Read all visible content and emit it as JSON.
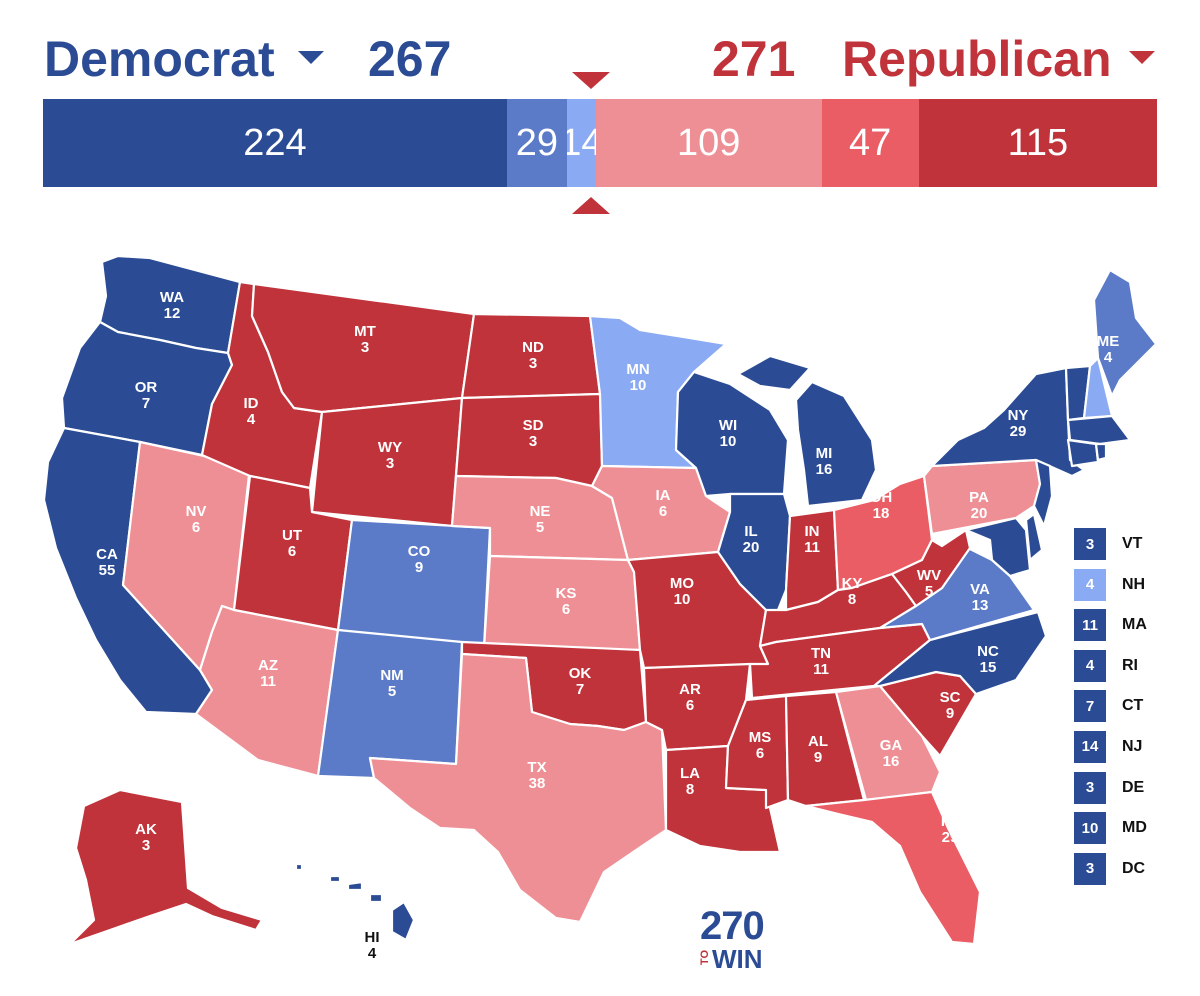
{
  "header": {
    "dem_label": "Democrat",
    "dem_total": "267",
    "rep_total": "271",
    "rep_label": "Republican"
  },
  "colors": {
    "safe_dem": "#2B4C94",
    "likely_dem": "#5B7AC7",
    "lean_dem": "#8AAAF3",
    "lean_rep": "#EE8F95",
    "likely_rep": "#EA5D64",
    "safe_rep": "#C0333A"
  },
  "bar": [
    {
      "value": 224,
      "label": "224",
      "category": "safe_dem"
    },
    {
      "value": 29,
      "label": "29",
      "category": "likely_dem"
    },
    {
      "value": 14,
      "label": "14",
      "category": "lean_dem"
    },
    {
      "value": 109,
      "label": "109",
      "category": "lean_rep"
    },
    {
      "value": 47,
      "label": "47",
      "category": "likely_rep"
    },
    {
      "value": 115,
      "label": "115",
      "category": "safe_rep"
    }
  ],
  "states": [
    {
      "abbr": "WA",
      "ev": "12",
      "category": "safe_dem"
    },
    {
      "abbr": "OR",
      "ev": "7",
      "category": "safe_dem"
    },
    {
      "abbr": "CA",
      "ev": "55",
      "category": "safe_dem"
    },
    {
      "abbr": "NV",
      "ev": "6",
      "category": "lean_rep"
    },
    {
      "abbr": "ID",
      "ev": "4",
      "category": "safe_rep"
    },
    {
      "abbr": "MT",
      "ev": "3",
      "category": "safe_rep"
    },
    {
      "abbr": "WY",
      "ev": "3",
      "category": "safe_rep"
    },
    {
      "abbr": "UT",
      "ev": "6",
      "category": "safe_rep"
    },
    {
      "abbr": "AZ",
      "ev": "11",
      "category": "lean_rep"
    },
    {
      "abbr": "CO",
      "ev": "9",
      "category": "likely_dem"
    },
    {
      "abbr": "NM",
      "ev": "5",
      "category": "likely_dem"
    },
    {
      "abbr": "ND",
      "ev": "3",
      "category": "safe_rep"
    },
    {
      "abbr": "SD",
      "ev": "3",
      "category": "safe_rep"
    },
    {
      "abbr": "NE",
      "ev": "5",
      "category": "lean_rep"
    },
    {
      "abbr": "KS",
      "ev": "6",
      "category": "lean_rep"
    },
    {
      "abbr": "OK",
      "ev": "7",
      "category": "safe_rep"
    },
    {
      "abbr": "TX",
      "ev": "38",
      "category": "lean_rep"
    },
    {
      "abbr": "MN",
      "ev": "10",
      "category": "lean_dem"
    },
    {
      "abbr": "IA",
      "ev": "6",
      "category": "lean_rep"
    },
    {
      "abbr": "MO",
      "ev": "10",
      "category": "safe_rep"
    },
    {
      "abbr": "AR",
      "ev": "6",
      "category": "safe_rep"
    },
    {
      "abbr": "LA",
      "ev": "8",
      "category": "safe_rep"
    },
    {
      "abbr": "WI",
      "ev": "10",
      "category": "safe_dem"
    },
    {
      "abbr": "IL",
      "ev": "20",
      "category": "safe_dem"
    },
    {
      "abbr": "MI",
      "ev": "16",
      "category": "safe_dem"
    },
    {
      "abbr": "IN",
      "ev": "11",
      "category": "safe_rep"
    },
    {
      "abbr": "OH",
      "ev": "18",
      "category": "likely_rep"
    },
    {
      "abbr": "KY",
      "ev": "8",
      "category": "safe_rep"
    },
    {
      "abbr": "TN",
      "ev": "11",
      "category": "safe_rep"
    },
    {
      "abbr": "MS",
      "ev": "6",
      "category": "safe_rep"
    },
    {
      "abbr": "AL",
      "ev": "9",
      "category": "safe_rep"
    },
    {
      "abbr": "GA",
      "ev": "16",
      "category": "lean_rep"
    },
    {
      "abbr": "FL",
      "ev": "29",
      "category": "likely_rep"
    },
    {
      "abbr": "SC",
      "ev": "9",
      "category": "safe_rep"
    },
    {
      "abbr": "NC",
      "ev": "15",
      "category": "safe_dem"
    },
    {
      "abbr": "VA",
      "ev": "13",
      "category": "likely_dem"
    },
    {
      "abbr": "WV",
      "ev": "5",
      "category": "safe_rep"
    },
    {
      "abbr": "PA",
      "ev": "20",
      "category": "lean_rep"
    },
    {
      "abbr": "NY",
      "ev": "29",
      "category": "safe_dem"
    },
    {
      "abbr": "ME",
      "ev": "4",
      "category": "likely_dem"
    },
    {
      "abbr": "AK",
      "ev": "3",
      "category": "safe_rep"
    },
    {
      "abbr": "HI",
      "ev": "4",
      "category": "safe_dem"
    }
  ],
  "small_states": [
    {
      "abbr": "VT",
      "ev": "3",
      "category": "safe_dem"
    },
    {
      "abbr": "NH",
      "ev": "4",
      "category": "lean_dem"
    },
    {
      "abbr": "MA",
      "ev": "11",
      "category": "safe_dem"
    },
    {
      "abbr": "RI",
      "ev": "4",
      "category": "safe_dem"
    },
    {
      "abbr": "CT",
      "ev": "7",
      "category": "safe_dem"
    },
    {
      "abbr": "NJ",
      "ev": "14",
      "category": "safe_dem"
    },
    {
      "abbr": "DE",
      "ev": "3",
      "category": "safe_dem"
    },
    {
      "abbr": "MD",
      "ev": "10",
      "category": "safe_dem"
    },
    {
      "abbr": "DC",
      "ev": "3",
      "category": "safe_dem"
    }
  ],
  "logo": {
    "number": "270",
    "to": "TO",
    "win": "WIN"
  }
}
